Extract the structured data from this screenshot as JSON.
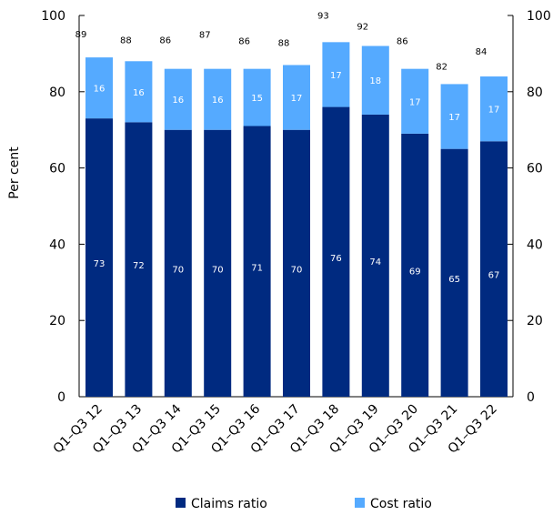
{
  "chart_data": {
    "type": "bar",
    "stacked": true,
    "ylabel": "Per cent",
    "ylim": [
      0,
      100
    ],
    "yticks": [
      0,
      20,
      40,
      60,
      80,
      100
    ],
    "categories": [
      "Q1–Q3 12",
      "Q1–Q3 13",
      "Q1–Q3 14",
      "Q1–Q3 15",
      "Q1–Q3 16",
      "Q1–Q3 17",
      "Q1–Q3 18",
      "Q1–Q3 19",
      "Q1–Q3 20",
      "Q1–Q3 21",
      "Q1–Q3 22"
    ],
    "series": [
      {
        "name": "Claims ratio",
        "color": "#002a80",
        "values": [
          73,
          72,
          70,
          70,
          71,
          70,
          76,
          74,
          69,
          65,
          67
        ]
      },
      {
        "name": "Cost ratio",
        "color": "#55aaff",
        "values": [
          16,
          16,
          16,
          16,
          15,
          17,
          17,
          18,
          17,
          17,
          17
        ]
      }
    ],
    "totals": [
      89,
      88,
      86,
      87,
      86,
      88,
      93,
      92,
      86,
      82,
      84
    ],
    "legend_position": "bottom",
    "grid": false
  }
}
